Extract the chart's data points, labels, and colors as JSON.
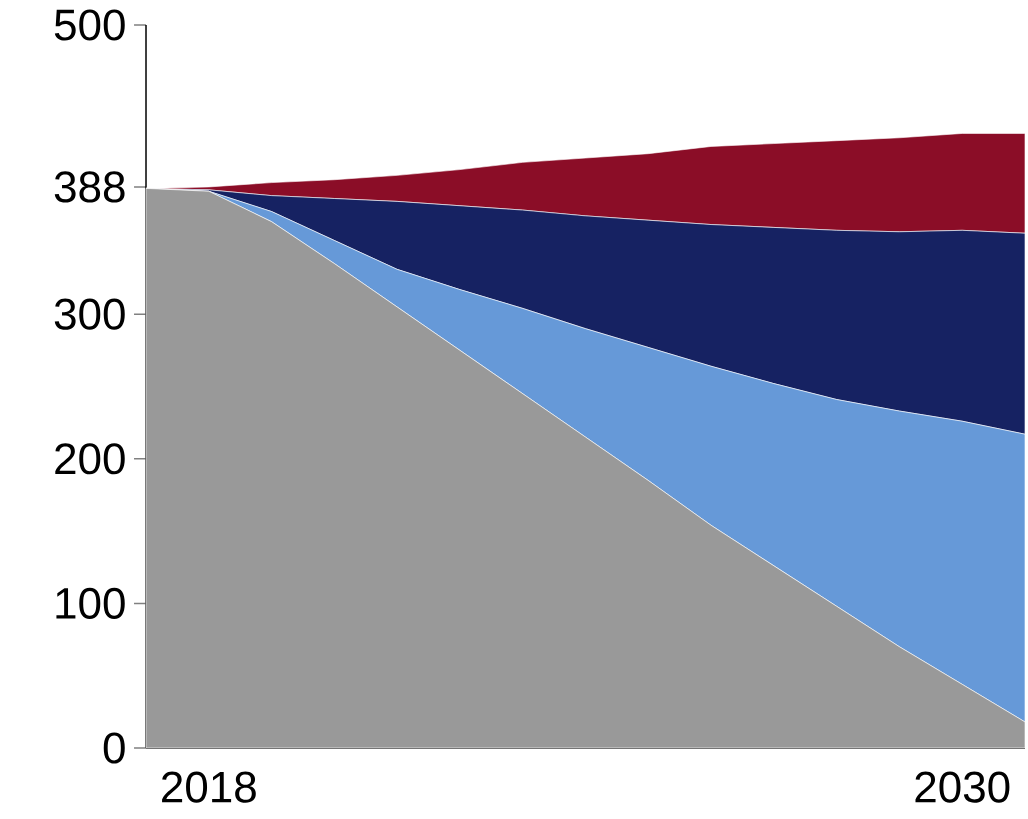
{
  "chart_data": {
    "type": "area",
    "stacked": true,
    "x": [
      2017,
      2018,
      2019,
      2020,
      2021,
      2022,
      2023,
      2024,
      2025,
      2026,
      2027,
      2028,
      2029,
      2030,
      2031
    ],
    "series": [
      {
        "color": "#999999",
        "values": [
          387,
          385,
          364,
          335,
          305,
          275,
          245,
          215,
          185,
          154,
          126,
          98,
          70,
          44,
          18
        ]
      },
      {
        "color": "#6699d8",
        "values": [
          0,
          0,
          7,
          16,
          26,
          42,
          59,
          75,
          92,
          110,
          126,
          143,
          163,
          182,
          199
        ]
      },
      {
        "color": "#162262",
        "values": [
          0,
          1,
          11,
          29,
          47,
          58,
          68,
          78,
          88,
          98,
          108,
          117,
          124,
          132,
          139
        ]
      },
      {
        "color": "#8b0d27",
        "values": [
          0,
          2,
          9,
          13,
          18,
          25,
          33,
          40,
          46,
          54,
          58,
          62,
          65,
          67,
          69
        ]
      }
    ],
    "xlim": [
      2017,
      2031
    ],
    "xticks": [
      2018,
      2030
    ],
    "ylim": [
      0,
      500
    ],
    "yticks": [
      0,
      100,
      200,
      300,
      388,
      500
    ],
    "grid": false
  }
}
